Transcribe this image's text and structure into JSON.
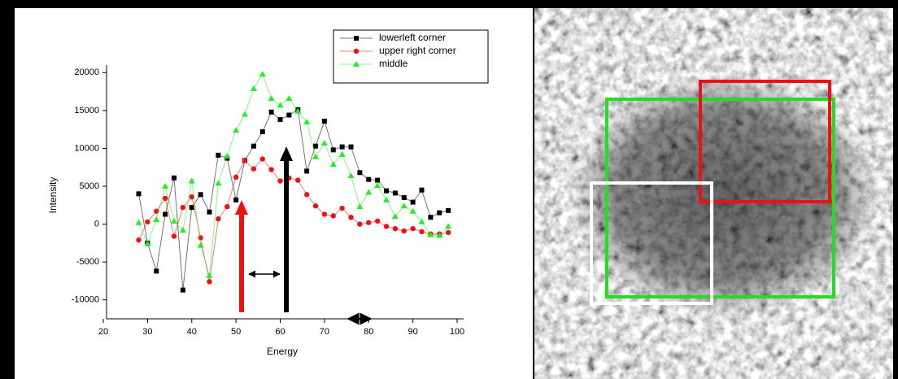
{
  "chart_data": {
    "type": "line",
    "xlabel": "Energy",
    "ylabel": "Intensity",
    "x": [
      28,
      30,
      32,
      34,
      36,
      38,
      40,
      42,
      44,
      46,
      48,
      50,
      52,
      54,
      56,
      58,
      60,
      62,
      64,
      66,
      68,
      70,
      72,
      74,
      76,
      78,
      80,
      82,
      84,
      86,
      88,
      90,
      92,
      94,
      96,
      98
    ],
    "series": [
      {
        "name": "lowerleft corner",
        "color": "#000000",
        "marker": "square",
        "values": [
          4000,
          -2500,
          -6200,
          1300,
          6100,
          -8700,
          2200,
          3900,
          1600,
          9100,
          8700,
          3200,
          8400,
          10300,
          12200,
          14800,
          13800,
          14400,
          15100,
          7000,
          10300,
          13600,
          9800,
          10200,
          10200,
          6800,
          5900,
          5800,
          4400,
          4100,
          3500,
          2900,
          4500,
          900,
          1500,
          1800
        ]
      },
      {
        "name": "upper right corner",
        "color": "#ee1111",
        "marker": "circle",
        "values": [
          -2100,
          300,
          1700,
          3400,
          -1600,
          2200,
          3600,
          -1800,
          -7600,
          700,
          2300,
          6200,
          8400,
          7300,
          8600,
          7200,
          5700,
          6100,
          5800,
          3900,
          2400,
          1300,
          1100,
          2100,
          900,
          0,
          200,
          400,
          -300,
          -600,
          -900,
          -600,
          -1000,
          -1300,
          -1300,
          -1100
        ]
      },
      {
        "name": "middle",
        "color": "#22ee22",
        "marker": "triangle",
        "values": [
          200,
          -2600,
          600,
          5000,
          400,
          -800,
          5700,
          -2800,
          -6800,
          5400,
          9000,
          12400,
          14500,
          17900,
          19800,
          16600,
          15700,
          16600,
          14900,
          13500,
          8900,
          10700,
          7900,
          9200,
          6400,
          2300,
          4200,
          5100,
          3200,
          1000,
          2400,
          1700,
          300,
          -1400,
          -1500,
          -300
        ]
      }
    ],
    "xlim": [
      20,
      100
    ],
    "xticks": [
      20,
      30,
      40,
      50,
      60,
      70,
      80,
      90,
      100
    ],
    "ylim": [
      -12500,
      21000
    ],
    "yticks": [
      -10000,
      -5000,
      0,
      5000,
      10000,
      15000,
      20000
    ],
    "legend": "upper-right"
  }
}
